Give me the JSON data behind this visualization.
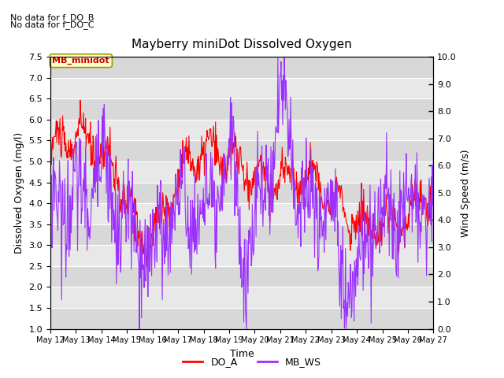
{
  "title": "Mayberry miniDot Dissolved Oxygen",
  "xlabel": "Time",
  "ylabel_left": "Dissolved Oxygen (mg/l)",
  "ylabel_right": "Wind Speed (m/s)",
  "annotation1": "No data for f_DO_B",
  "annotation2": "No data for f_DO_C",
  "box_label": "MB_minidot",
  "ylim_left": [
    1.0,
    7.5
  ],
  "ylim_right": [
    0.0,
    10.0
  ],
  "yticks_left": [
    1.0,
    1.5,
    2.0,
    2.5,
    3.0,
    3.5,
    4.0,
    4.5,
    5.0,
    5.5,
    6.0,
    6.5,
    7.0,
    7.5
  ],
  "yticks_right": [
    0.0,
    1.0,
    2.0,
    3.0,
    4.0,
    5.0,
    6.0,
    7.0,
    8.0,
    9.0,
    10.0
  ],
  "xtick_labels": [
    "May 12",
    "May 13",
    "May 14",
    "May 15",
    "May 16",
    "May 17",
    "May 18",
    "May 19",
    "May 20",
    "May 21",
    "May 22",
    "May 23",
    "May 24",
    "May 25",
    "May 26",
    "May 27"
  ],
  "color_do": "#ff0000",
  "color_ws": "#9b30ff",
  "legend_do": "DO_A",
  "legend_ws": "MB_WS",
  "bg_color_light": "#e8e8e8",
  "bg_color_dark": "#d8d8d8",
  "grid_color": "#ffffff",
  "fig_bg": "#ffffff"
}
